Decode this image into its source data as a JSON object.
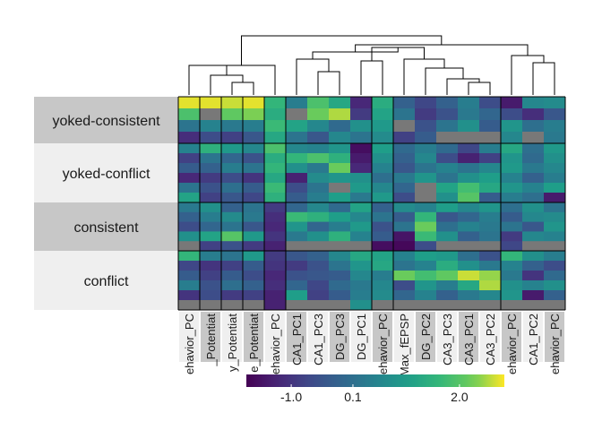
{
  "chart_data": {
    "type": "heatmap",
    "title": "",
    "xlabel": "",
    "ylabel": "",
    "columns": [
      "ehavior_PC",
      "_Potentiat",
      "y_Potentiat",
      "e_Potentiat",
      "ehavior_PC",
      "CA1_PC1",
      "CA1_PC3",
      "DG_PC3",
      "DG_PC1",
      "ehavior_PC",
      "Max_fEPSP",
      "DG_PC2",
      "CA3_PC3",
      "CA3_PC1",
      "CA3_PC2",
      "ehavior_PC",
      "CA1_PC2",
      "ehavior_PC"
    ],
    "row_groups": [
      {
        "name": "yoked-consistent",
        "n_rows": 4
      },
      {
        "name": "yoked-conflict",
        "n_rows": 6
      },
      {
        "name": "consistent",
        "n_rows": 5
      },
      {
        "name": "conflict",
        "n_rows": 6
      }
    ],
    "colorbar": {
      "ticks": [
        "-1.0",
        "0.1",
        "2.0"
      ],
      "min": -1.8,
      "max": 2.8
    },
    "na_color": "#787878",
    "values": [
      [
        2.7,
        2.7,
        2.6,
        2.7,
        1.6,
        0.4,
        1.9,
        1.3,
        -1.2,
        1.4,
        -0.2,
        -0.7,
        -0.2,
        0.4,
        -0.6,
        -1.4,
        0.6,
        0.7
      ],
      [
        1.9,
        null,
        2.1,
        2.3,
        1.4,
        null,
        2.2,
        2.5,
        -0.9,
        1.2,
        0.2,
        -0.9,
        -0.5,
        0.3,
        -0.1,
        -0.6,
        -1.1,
        -0.4
      ],
      [
        0.2,
        0.5,
        0.3,
        0.4,
        1.7,
        1.2,
        0.6,
        0.0,
        0.8,
        1.0,
        null,
        -0.5,
        0.2,
        0.8,
        -0.3,
        0.9,
        0.1,
        0.4
      ],
      [
        -1.1,
        -0.6,
        -0.8,
        -0.4,
        1.3,
        0.2,
        -0.4,
        0.6,
        0.2,
        0.7,
        -0.8,
        -0.3,
        null,
        null,
        null,
        0.6,
        null,
        0.3
      ],
      [
        0.5,
        1.5,
        1.0,
        0.6,
        1.9,
        0.6,
        0.5,
        0.9,
        -1.6,
        1.1,
        0.0,
        0.4,
        0.0,
        -0.7,
        0.4,
        1.3,
        0.1,
        1.0
      ],
      [
        -0.8,
        0.2,
        -0.1,
        -0.5,
        1.4,
        1.6,
        1.9,
        1.5,
        -1.4,
        0.8,
        -0.2,
        0.6,
        -0.6,
        -1.3,
        -0.8,
        0.9,
        0.0,
        0.8
      ],
      [
        -0.3,
        -0.2,
        0.4,
        0.2,
        1.6,
        0.8,
        0.3,
        2.2,
        -1.2,
        0.5,
        -0.4,
        0.2,
        0.5,
        0.2,
        0.6,
        1.0,
        0.3,
        0.6
      ],
      [
        -1.2,
        -0.9,
        -0.6,
        -1.0,
        1.3,
        -1.3,
        0.7,
        0.9,
        0.8,
        0.1,
        0.3,
        0.9,
        0.2,
        0.8,
        1.1,
        0.5,
        -0.2,
        0.4
      ],
      [
        0.2,
        -0.5,
        0.1,
        -0.3,
        1.7,
        -0.6,
        0.2,
        null,
        1.0,
        0.6,
        -0.1,
        null,
        1.2,
        1.8,
        1.3,
        0.9,
        0.5,
        1.1
      ],
      [
        1.2,
        -0.8,
        -0.4,
        -0.7,
        1.5,
        -0.3,
        0.4,
        1.1,
        0.3,
        1.0,
        -0.6,
        null,
        0.8,
        2.0,
        -0.3,
        0.4,
        0.1,
        -1.4
      ],
      [
        0.3,
        0.8,
        -0.2,
        0.2,
        -0.9,
        -0.1,
        0.6,
        0.0,
        1.2,
        -0.2,
        0.7,
        0.5,
        1.1,
        0.6,
        0.9,
        0.1,
        0.8,
        0.2
      ],
      [
        -0.2,
        0.4,
        0.7,
        0.3,
        -1.1,
        1.7,
        1.5,
        1.1,
        0.6,
        0.2,
        -0.3,
        1.6,
        -0.4,
        -0.1,
        0.4,
        -0.3,
        0.6,
        0.7
      ],
      [
        -0.6,
        -0.1,
        0.2,
        -0.4,
        -1.2,
        0.9,
        -0.1,
        0.4,
        1.0,
        -0.5,
        0.2,
        2.2,
        0.1,
        0.5,
        0.3,
        0.2,
        -0.4,
        0.9
      ],
      [
        0.8,
        1.2,
        2.0,
        1.0,
        -1.0,
        0.3,
        0.8,
        1.5,
        0.5,
        -0.3,
        -1.5,
        1.7,
        0.8,
        -0.2,
        0.2,
        -0.9,
        0.6,
        0.5
      ],
      [
        null,
        -0.8,
        -0.5,
        -0.9,
        -1.3,
        null,
        null,
        null,
        null,
        -1.6,
        -1.7,
        -0.6,
        null,
        null,
        null,
        -0.7,
        null,
        null
      ],
      [
        1.6,
        0.4,
        0.2,
        1.0,
        -0.9,
        -0.4,
        -0.2,
        0.6,
        1.3,
        1.2,
        0.5,
        1.1,
        1.0,
        0.1,
        -0.5,
        1.6,
        0.8,
        0.4
      ],
      [
        -0.7,
        -1.0,
        -0.8,
        -0.3,
        -1.0,
        -0.9,
        -0.5,
        0.2,
        0.9,
        1.3,
        0.2,
        0.5,
        1.4,
        0.8,
        0.3,
        0.5,
        -0.2,
        -0.6
      ],
      [
        -0.3,
        -0.8,
        -0.3,
        -0.6,
        -1.2,
        -0.5,
        -0.4,
        -0.3,
        0.6,
        0.4,
        2.2,
        1.8,
        2.1,
        2.6,
        2.4,
        0.3,
        -1.0,
        0.0
      ],
      [
        0.4,
        -0.5,
        0.1,
        -0.2,
        -1.1,
        -0.1,
        -0.7,
        0.0,
        0.3,
        0.6,
        -0.6,
        0.9,
        0.4,
        1.3,
        2.5,
        0.8,
        0.5,
        0.8
      ],
      [
        -1.0,
        -0.6,
        -0.9,
        -0.8,
        -1.3,
        1.1,
        -0.8,
        -0.3,
        0.4,
        0.7,
        -0.1,
        0.5,
        -0.2,
        0.3,
        0.6,
        0.9,
        -1.4,
        -0.2
      ],
      [
        null,
        null,
        null,
        null,
        -1.3,
        null,
        null,
        null,
        0.8,
        null,
        null,
        null,
        null,
        null,
        null,
        null,
        null,
        null
      ]
    ],
    "dendrogram": "complete-linkage tree over the 18 columns, drawn above the heatmap"
  }
}
